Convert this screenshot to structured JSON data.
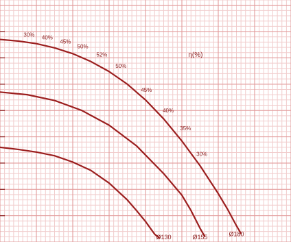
{
  "chart_data": {
    "type": "line",
    "title": "",
    "xlabel": "",
    "ylabel": "",
    "grid": true,
    "xlim": [
      0,
      32
    ],
    "ylim": [
      0,
      46
    ],
    "efficiency_axis_label": "η(%)",
    "series": [
      {
        "name": "Ø130",
        "label": "Ø130",
        "points": [
          [
            0,
            18.0
          ],
          [
            2,
            17.6
          ],
          [
            4,
            17.1
          ],
          [
            6,
            16.4
          ],
          [
            8,
            15.2
          ],
          [
            10,
            13.6
          ],
          [
            12,
            11.2
          ],
          [
            14,
            8.0
          ],
          [
            15,
            6.0
          ],
          [
            16,
            3.9
          ],
          [
            17,
            1.5
          ],
          [
            17.5,
            0.8
          ]
        ]
      },
      {
        "name": "Ø155",
        "label": "Ø155",
        "points": [
          [
            0,
            28.5
          ],
          [
            3,
            28.0
          ],
          [
            6,
            26.9
          ],
          [
            9,
            25.0
          ],
          [
            12,
            22.2
          ],
          [
            15,
            18.3
          ],
          [
            18,
            13.0
          ],
          [
            20,
            8.9
          ],
          [
            21,
            6.0
          ],
          [
            22,
            2.6
          ],
          [
            22.5,
            1.1
          ]
        ]
      },
      {
        "name": "Ø180",
        "label": "Ø180",
        "points": [
          [
            0,
            38.5
          ],
          [
            2,
            38.2
          ],
          [
            4,
            37.7
          ],
          [
            6,
            36.9
          ],
          [
            8,
            35.8
          ],
          [
            10,
            34.3
          ],
          [
            12,
            32.4
          ],
          [
            14,
            30.0
          ],
          [
            16,
            27.0
          ],
          [
            18,
            23.4
          ],
          [
            20,
            19.2
          ],
          [
            22,
            14.5
          ],
          [
            24,
            9.2
          ],
          [
            25,
            6.3
          ],
          [
            26,
            3.1
          ],
          [
            26.5,
            1.6
          ]
        ]
      }
    ],
    "efficiency_labels": [
      {
        "text": "30%",
        "x": 3.2,
        "y": 39.3
      },
      {
        "text": "40%",
        "x": 5.2,
        "y": 38.8
      },
      {
        "text": "45%",
        "x": 7.2,
        "y": 38.0
      },
      {
        "text": "50%",
        "x": 9.1,
        "y": 37.1
      },
      {
        "text": "52%",
        "x": 11.2,
        "y": 35.5
      },
      {
        "text": "50%",
        "x": 13.3,
        "y": 33.4
      },
      {
        "text": "45%",
        "x": 16.1,
        "y": 28.8
      },
      {
        "text": "40%",
        "x": 18.5,
        "y": 24.9
      },
      {
        "text": "35%",
        "x": 20.4,
        "y": 21.5
      },
      {
        "text": "30%",
        "x": 22.2,
        "y": 16.6
      }
    ],
    "curve_labels": [
      {
        "series": "Ø130",
        "text": "Ø130",
        "x": 18.0,
        "y": 0.8
      },
      {
        "series": "Ø155",
        "text": "Ø155",
        "x": 22.0,
        "y": 0.8
      },
      {
        "series": "Ø180",
        "text": "Ø180",
        "x": 26.0,
        "y": 1.4
      }
    ]
  },
  "colors": {
    "background": "#ffffff",
    "minor_grid": "#f1cccc",
    "major_grid": "#e29a9a",
    "axis_ticks": "#8b1d1d",
    "curve": "#9b1e1e",
    "label": "#8b1d1d"
  }
}
